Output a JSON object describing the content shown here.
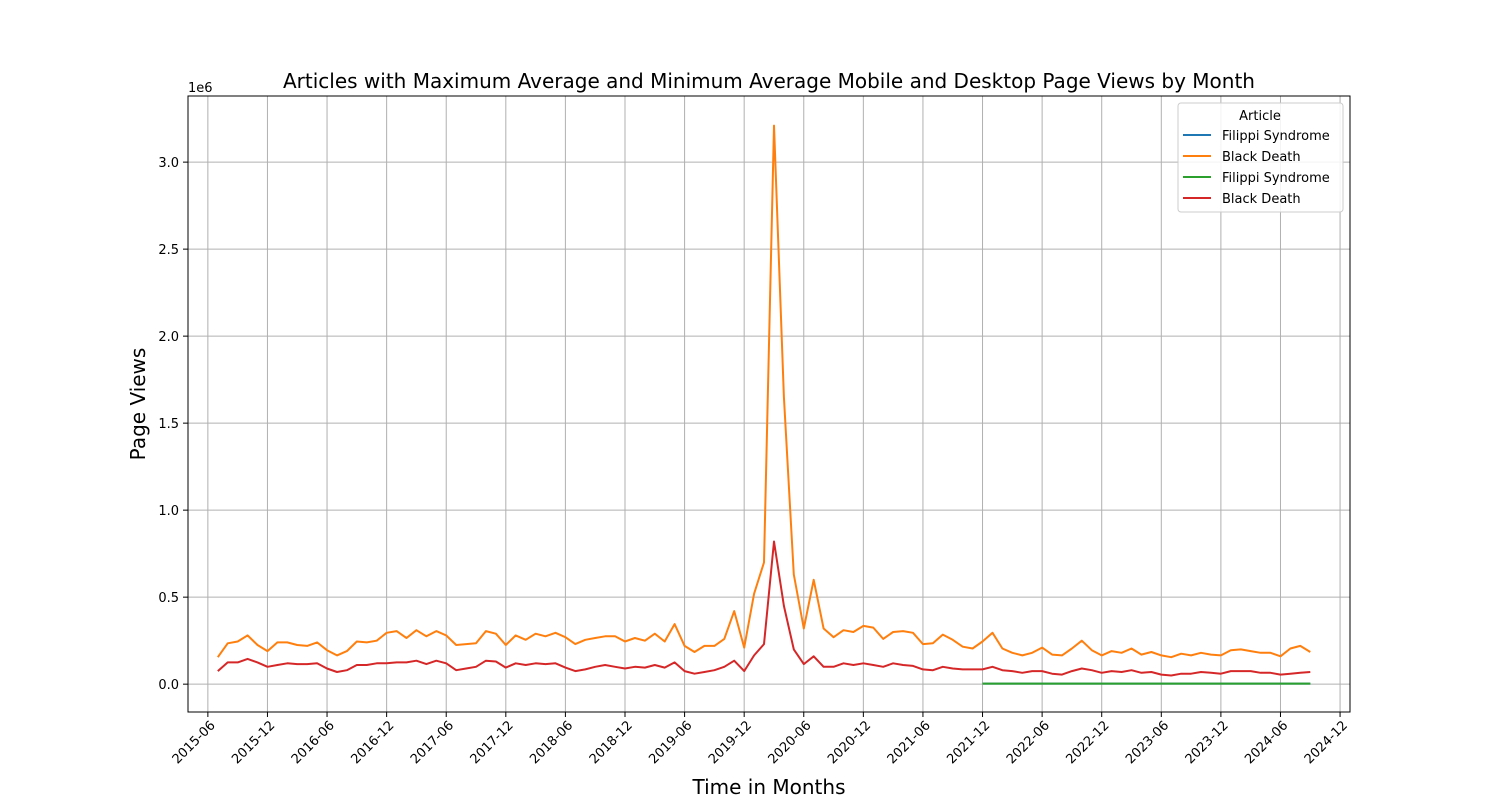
{
  "chart_data": {
    "type": "line",
    "title": "Articles with Maximum Average and Minimum Average Mobile and Desktop Page Views by Month",
    "xlabel": "Time in Months",
    "ylabel": "Page Views",
    "y_offset_label": "1e6",
    "xlim": [
      "2015-04",
      "2025-01"
    ],
    "ylim": [
      -0.16,
      3.38
    ],
    "y_ticks": [
      0.0,
      0.5,
      1.0,
      1.5,
      2.0,
      2.5,
      3.0
    ],
    "y_tick_labels": [
      "0.0",
      "0.5",
      "1.0",
      "1.5",
      "2.0",
      "2.5",
      "3.0"
    ],
    "x_ticks": [
      "2015-06",
      "2015-12",
      "2016-06",
      "2016-12",
      "2017-06",
      "2017-12",
      "2018-06",
      "2018-12",
      "2019-06",
      "2019-12",
      "2020-06",
      "2020-12",
      "2021-06",
      "2021-12",
      "2022-06",
      "2022-12",
      "2023-06",
      "2023-12",
      "2024-06",
      "2024-12"
    ],
    "grid": true,
    "legend": {
      "title": "Article",
      "placement": "top-right"
    },
    "series": [
      {
        "name": "Filippi Syndrome",
        "color": "#1f77b4",
        "start": "2021-12",
        "values": [
          0.003,
          0.003,
          0.003,
          0.003,
          0.003,
          0.003,
          0.003,
          0.003,
          0.003,
          0.003,
          0.003,
          0.003,
          0.003,
          0.003,
          0.003,
          0.003,
          0.003,
          0.003,
          0.003,
          0.003,
          0.003,
          0.003,
          0.003,
          0.003,
          0.003,
          0.003,
          0.003,
          0.003,
          0.003,
          0.003,
          0.003,
          0.003,
          0.003,
          0.003
        ]
      },
      {
        "name": "Black Death",
        "color": "#ff7f0e",
        "start": "2015-07",
        "values": [
          0.155,
          0.235,
          0.245,
          0.28,
          0.225,
          0.19,
          0.24,
          0.24,
          0.225,
          0.22,
          0.24,
          0.195,
          0.165,
          0.19,
          0.245,
          0.24,
          0.25,
          0.295,
          0.305,
          0.265,
          0.31,
          0.275,
          0.305,
          0.28,
          0.225,
          0.23,
          0.235,
          0.305,
          0.29,
          0.225,
          0.28,
          0.255,
          0.29,
          0.275,
          0.295,
          0.27,
          0.23,
          0.255,
          0.265,
          0.275,
          0.275,
          0.245,
          0.265,
          0.25,
          0.29,
          0.245,
          0.345,
          0.22,
          0.185,
          0.22,
          0.22,
          0.26,
          0.42,
          0.21,
          0.52,
          0.7,
          3.21,
          1.65,
          0.63,
          0.32,
          0.6,
          0.32,
          0.27,
          0.31,
          0.3,
          0.335,
          0.325,
          0.26,
          0.3,
          0.305,
          0.295,
          0.23,
          0.235,
          0.285,
          0.255,
          0.215,
          0.205,
          0.245,
          0.295,
          0.205,
          0.18,
          0.165,
          0.18,
          0.21,
          0.17,
          0.165,
          0.205,
          0.25,
          0.195,
          0.165,
          0.19,
          0.18,
          0.205,
          0.17,
          0.185,
          0.165,
          0.155,
          0.175,
          0.165,
          0.18,
          0.17,
          0.165,
          0.195,
          0.2,
          0.19,
          0.18,
          0.18,
          0.16,
          0.205,
          0.22,
          0.185
        ]
      },
      {
        "name": "Filippi Syndrome",
        "color": "#2ca02c",
        "start": "2021-12",
        "values": [
          0.003,
          0.003,
          0.003,
          0.003,
          0.003,
          0.003,
          0.003,
          0.003,
          0.003,
          0.003,
          0.003,
          0.003,
          0.003,
          0.003,
          0.003,
          0.003,
          0.003,
          0.003,
          0.003,
          0.003,
          0.003,
          0.003,
          0.003,
          0.003,
          0.003,
          0.003,
          0.003,
          0.003,
          0.003,
          0.003,
          0.003,
          0.003,
          0.003,
          0.003
        ]
      },
      {
        "name": "Black Death",
        "color": "#d62728",
        "start": "2015-07",
        "values": [
          0.075,
          0.125,
          0.125,
          0.145,
          0.125,
          0.1,
          0.11,
          0.12,
          0.115,
          0.115,
          0.12,
          0.09,
          0.07,
          0.08,
          0.11,
          0.11,
          0.12,
          0.12,
          0.125,
          0.125,
          0.135,
          0.115,
          0.135,
          0.12,
          0.08,
          0.09,
          0.1,
          0.135,
          0.13,
          0.095,
          0.12,
          0.11,
          0.12,
          0.115,
          0.12,
          0.095,
          0.075,
          0.085,
          0.1,
          0.11,
          0.1,
          0.09,
          0.1,
          0.095,
          0.11,
          0.095,
          0.125,
          0.075,
          0.06,
          0.07,
          0.08,
          0.1,
          0.135,
          0.075,
          0.165,
          0.23,
          0.82,
          0.45,
          0.2,
          0.115,
          0.16,
          0.1,
          0.1,
          0.12,
          0.11,
          0.12,
          0.11,
          0.1,
          0.12,
          0.11,
          0.105,
          0.085,
          0.08,
          0.1,
          0.09,
          0.085,
          0.085,
          0.085,
          0.1,
          0.08,
          0.075,
          0.065,
          0.075,
          0.075,
          0.06,
          0.055,
          0.075,
          0.09,
          0.08,
          0.065,
          0.075,
          0.07,
          0.08,
          0.065,
          0.07,
          0.055,
          0.05,
          0.06,
          0.06,
          0.07,
          0.065,
          0.06,
          0.075,
          0.075,
          0.075,
          0.065,
          0.065,
          0.055,
          0.06,
          0.065,
          0.07
        ]
      }
    ]
  }
}
